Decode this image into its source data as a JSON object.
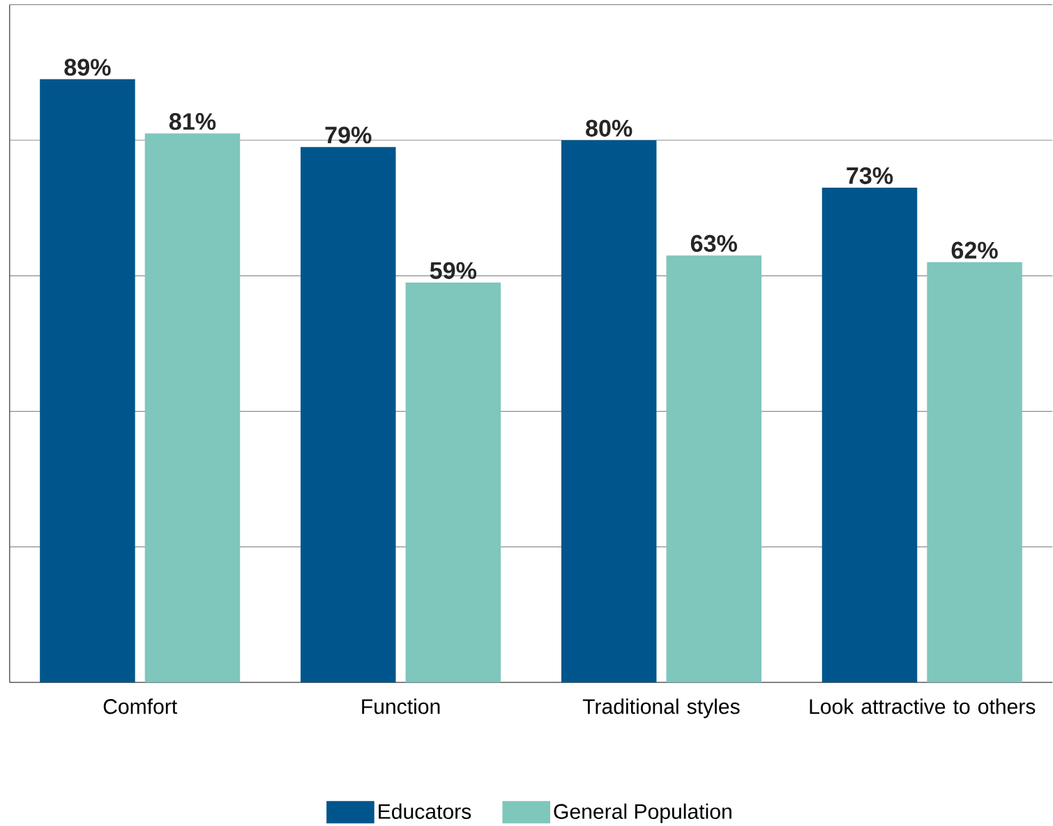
{
  "chart_data": {
    "type": "bar",
    "categories": [
      "Comfort",
      "Function",
      "Traditional styles",
      "Look attractive to others"
    ],
    "series": [
      {
        "name": "Educators",
        "color": "#00568c",
        "values": [
          89,
          79,
          80,
          73
        ],
        "value_labels": [
          "89%",
          "79%",
          "80%",
          "73%"
        ]
      },
      {
        "name": "General Population",
        "color": "#7fc6bc",
        "values": [
          81,
          59,
          63,
          62
        ],
        "value_labels": [
          "81%",
          "59%",
          "63%",
          "62%"
        ]
      }
    ],
    "ylim": [
      0,
      100
    ],
    "yticks": [
      {
        "value": 0,
        "label": null
      },
      {
        "value": 20,
        "label": null
      },
      {
        "value": 40,
        "label": null
      },
      {
        "value": 60,
        "label": null
      },
      {
        "value": 80,
        "label": null
      },
      {
        "value": 100,
        "label": null
      }
    ],
    "grid": "y",
    "legend": "bottom"
  }
}
